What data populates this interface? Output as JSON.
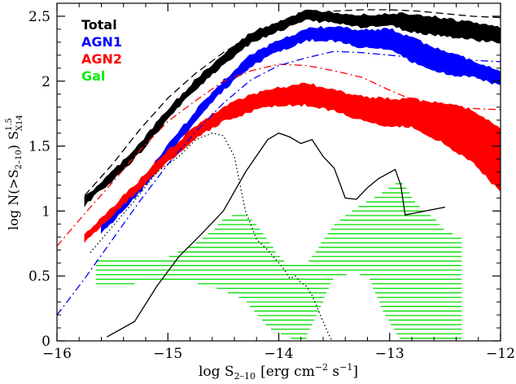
{
  "chart_data": {
    "type": "line",
    "xlabel": {
      "text": "log S",
      "sub": "2–10",
      "unit": "[erg cm",
      "exp1": "−2",
      "mid": " s",
      "exp2": "−1",
      "end": "]"
    },
    "ylabel": {
      "text": "log N(>S",
      "sub": "2–10",
      "close": ")",
      "s": "S",
      "sup": "1.5",
      "subs": "X14"
    },
    "xlim": [
      -16,
      -12
    ],
    "ylim": [
      0,
      2.6
    ],
    "xticks": [
      -16,
      -15,
      -14,
      -13,
      -12
    ],
    "xtick_labels": [
      "−16",
      "−15",
      "−14",
      "−13",
      "−12"
    ],
    "yticks": [
      0,
      0.5,
      1,
      1.5,
      2,
      2.5
    ],
    "ytick_labels": [
      "0",
      "0.5",
      "1",
      "1.5",
      "2",
      "2.5"
    ],
    "legend": {
      "position": "top-left",
      "entries": [
        {
          "name": "Total",
          "color": "#000000"
        },
        {
          "name": "AGN1",
          "color": "#0000ff"
        },
        {
          "name": "AGN2",
          "color": "#ff0000"
        },
        {
          "name": "Gal",
          "color": "#00ee00"
        }
      ]
    },
    "bands": [
      {
        "key": "total",
        "color": "#000000",
        "x": [
          -15.75,
          -15.5,
          -15.25,
          -15.0,
          -14.75,
          -14.5,
          -14.25,
          -14.0,
          -13.75,
          -13.5,
          -13.25,
          -13.0,
          -12.8,
          -12.5,
          -12.25,
          -12.0
        ],
        "low": [
          1.05,
          1.24,
          1.45,
          1.71,
          1.94,
          2.13,
          2.3,
          2.39,
          2.47,
          2.45,
          2.42,
          2.43,
          2.38,
          2.35,
          2.32,
          2.3
        ],
        "high": [
          1.1,
          1.3,
          1.52,
          1.78,
          2.01,
          2.2,
          2.37,
          2.46,
          2.54,
          2.53,
          2.51,
          2.52,
          2.52,
          2.48,
          2.45,
          2.41
        ]
      },
      {
        "key": "agn1",
        "color": "#0000ff",
        "x": [
          -15.6,
          -15.5,
          -15.25,
          -15.0,
          -14.75,
          -14.5,
          -14.25,
          -14.0,
          -13.75,
          -13.5,
          -13.25,
          -13.0,
          -12.8,
          -12.5,
          -12.25,
          -12.0
        ],
        "low": [
          0.84,
          0.92,
          1.15,
          1.43,
          1.7,
          1.93,
          2.12,
          2.23,
          2.32,
          2.31,
          2.26,
          2.25,
          2.15,
          2.06,
          2.03,
          1.97
        ],
        "high": [
          0.88,
          0.98,
          1.22,
          1.5,
          1.77,
          2.0,
          2.2,
          2.31,
          2.4,
          2.42,
          2.39,
          2.4,
          2.33,
          2.22,
          2.16,
          2.07
        ]
      },
      {
        "key": "agn2",
        "color": "#ff0000",
        "x": [
          -15.75,
          -15.5,
          -15.25,
          -15.0,
          -14.75,
          -14.5,
          -14.25,
          -14.0,
          -13.75,
          -13.5,
          -13.25,
          -13.0,
          -12.8,
          -12.5,
          -12.25,
          -12.0
        ],
        "low": [
          0.77,
          0.97,
          1.18,
          1.38,
          1.56,
          1.69,
          1.77,
          1.82,
          1.82,
          1.77,
          1.7,
          1.65,
          1.65,
          1.52,
          1.37,
          1.15
        ],
        "high": [
          0.81,
          1.03,
          1.24,
          1.46,
          1.65,
          1.8,
          1.89,
          1.95,
          1.98,
          1.93,
          1.88,
          1.86,
          1.86,
          1.82,
          1.78,
          1.63
        ]
      }
    ],
    "lines": [
      {
        "key": "total-model",
        "color": "#000000",
        "dash": "dashed",
        "x": [
          -15.75,
          -15.5,
          -15.25,
          -15.0,
          -14.75,
          -14.5,
          -14.25,
          -14.0,
          -13.75,
          -13.5,
          -13.25,
          -13.0,
          -12.75,
          -12.5,
          -12.25,
          -12.0
        ],
        "y": [
          1.12,
          1.36,
          1.63,
          1.87,
          2.06,
          2.22,
          2.35,
          2.45,
          2.51,
          2.54,
          2.55,
          2.55,
          2.54,
          2.52,
          2.5,
          2.49
        ]
      },
      {
        "key": "agn2-model",
        "color": "#ff0000",
        "dash": "dashdot",
        "x": [
          -16.0,
          -15.75,
          -15.5,
          -15.25,
          -15.0,
          -14.75,
          -14.5,
          -14.25,
          -14.0,
          -13.75,
          -13.5,
          -13.25,
          -13.0,
          -12.75,
          -12.5,
          -12.25,
          -12.0
        ],
        "y": [
          0.73,
          0.98,
          1.22,
          1.47,
          1.69,
          1.85,
          2.0,
          2.08,
          2.13,
          2.12,
          2.08,
          2.03,
          1.93,
          1.84,
          1.8,
          1.79,
          1.78
        ]
      },
      {
        "key": "agn1-model",
        "color": "#0000ff",
        "dash": "dashdot",
        "x": [
          -16.0,
          -15.75,
          -15.5,
          -15.25,
          -15.0,
          -14.75,
          -14.5,
          -14.25,
          -14.0,
          -13.75,
          -13.5,
          -13.25,
          -13.0,
          -12.75,
          -12.5,
          -12.25,
          -12.0
        ],
        "y": [
          0.2,
          0.48,
          0.78,
          1.08,
          1.36,
          1.61,
          1.83,
          2.01,
          2.12,
          2.18,
          2.23,
          2.22,
          2.2,
          2.18,
          2.17,
          2.16,
          2.15
        ]
      },
      {
        "key": "gal-sim-dotted",
        "color": "#000000",
        "dash": "dotted",
        "x": [
          -15.7,
          -15.5,
          -15.3,
          -15.1,
          -14.9,
          -14.75,
          -14.6,
          -14.5,
          -14.4,
          -14.3,
          -14.2,
          -14.1,
          -14.0,
          -13.95,
          -13.9,
          -13.85,
          -13.8,
          -13.75,
          -13.7,
          -13.65,
          -13.6,
          -13.55,
          -13.52
        ],
        "y": [
          0.68,
          0.88,
          1.08,
          1.3,
          1.42,
          1.55,
          1.6,
          1.58,
          1.42,
          1.0,
          0.78,
          0.7,
          0.6,
          0.55,
          0.48,
          0.5,
          0.45,
          0.42,
          0.35,
          0.25,
          0.15,
          0.05,
          0.0
        ]
      },
      {
        "key": "gal-sim-solid",
        "color": "#000000",
        "dash": "solid",
        "x": [
          -15.55,
          -15.3,
          -15.1,
          -14.9,
          -14.7,
          -14.5,
          -14.3,
          -14.1,
          -14.0,
          -13.9,
          -13.8,
          -13.7,
          -13.6,
          -13.5,
          -13.4,
          -13.3,
          -13.2,
          -13.1,
          -12.95,
          -12.9,
          -12.86,
          -12.5
        ],
        "y": [
          0.03,
          0.15,
          0.42,
          0.65,
          0.82,
          1.0,
          1.3,
          1.55,
          1.6,
          1.57,
          1.52,
          1.55,
          1.42,
          1.33,
          1.1,
          1.09,
          1.18,
          1.25,
          1.32,
          1.2,
          0.97,
          1.03
        ]
      }
    ],
    "hatch": {
      "color": "#00dd00",
      "x": [
        -15.65,
        -15.4,
        -15.2,
        -15.0,
        -14.8,
        -14.6,
        -14.5,
        -14.4,
        -14.3,
        -14.2,
        -14.1,
        -14.0,
        -13.9,
        -13.75,
        -13.6,
        -13.5,
        -13.35,
        -13.2,
        -13.05,
        -12.9,
        -12.85,
        -12.75,
        -12.6,
        -12.5,
        -12.35
      ],
      "low": [
        0.43,
        0.43,
        0.45,
        0.47,
        0.45,
        0.42,
        0.38,
        0.35,
        0.3,
        0.2,
        0.1,
        0.06,
        0.02,
        0.02,
        0.3,
        0.48,
        0.52,
        0.5,
        0.2,
        0.0,
        0.0,
        0.02,
        0.0,
        0.0,
        0.0
      ],
      "high": [
        0.64,
        0.62,
        0.64,
        0.65,
        0.73,
        0.85,
        0.95,
        0.97,
        0.98,
        0.9,
        0.78,
        0.66,
        0.58,
        0.6,
        0.78,
        0.9,
        1.0,
        1.08,
        1.15,
        1.25,
        1.18,
        1.05,
        0.95,
        0.85,
        0.8
      ]
    }
  }
}
